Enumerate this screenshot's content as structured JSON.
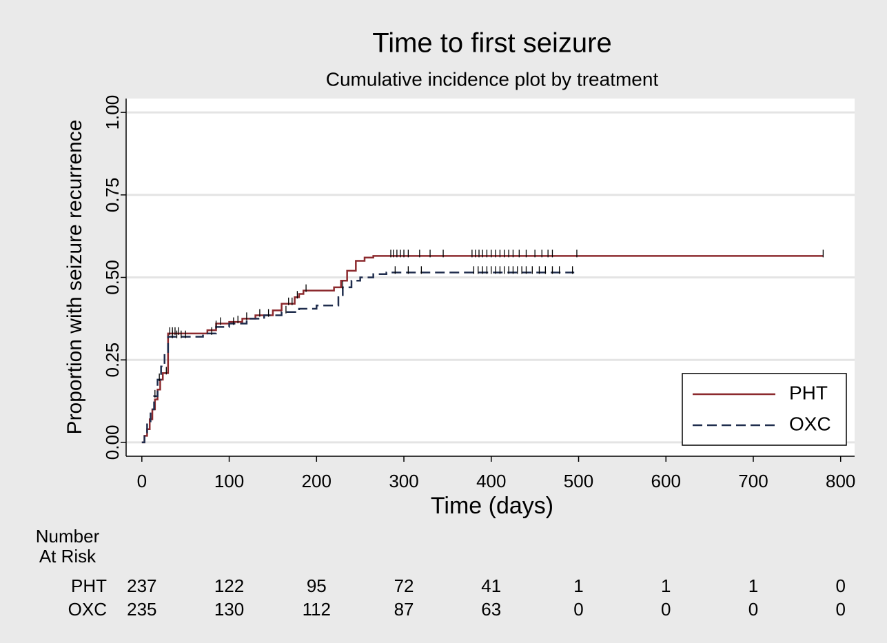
{
  "chart_data": {
    "type": "step",
    "title": "Time to first seizure",
    "subtitle": "Cumulative incidence plot by treatment",
    "x_label": "Time (days)",
    "y_label": "Proportion with seizure recurrence",
    "xlim": [
      -18,
      816
    ],
    "ylim": [
      -0.042,
      1.042
    ],
    "xticks": [
      0,
      100,
      200,
      300,
      400,
      500,
      600,
      700,
      800
    ],
    "yticks": [
      {
        "value": 0,
        "label": "0.00"
      },
      {
        "value": 0.25,
        "label": "0.25"
      },
      {
        "value": 0.5,
        "label": "0.50"
      },
      {
        "value": 0.75,
        "label": "0.75"
      },
      {
        "value": 1,
        "label": "1.00"
      }
    ],
    "grid": true,
    "legend": "lower right",
    "series": [
      {
        "name": "PHT",
        "color": "#8c2a2e",
        "dash": false,
        "x": [
          0,
          3,
          6,
          9,
          12,
          15,
          18,
          21,
          24,
          30,
          60,
          75,
          85,
          100,
          115,
          130,
          150,
          160,
          175,
          180,
          185,
          220,
          228,
          235,
          245,
          255,
          265,
          780
        ],
        "values": [
          0,
          0.02,
          0.04,
          0.07,
          0.1,
          0.13,
          0.16,
          0.19,
          0.21,
          0.33,
          0.33,
          0.34,
          0.36,
          0.365,
          0.375,
          0.385,
          0.4,
          0.42,
          0.44,
          0.45,
          0.46,
          0.47,
          0.49,
          0.52,
          0.55,
          0.56,
          0.565,
          0.565
        ],
        "censored": [
          28,
          32,
          35,
          38,
          42,
          90,
          110,
          135,
          168,
          172,
          178,
          188,
          285,
          288,
          292,
          296,
          300,
          305,
          318,
          330,
          345,
          378,
          382,
          386,
          390,
          395,
          400,
          405,
          410,
          415,
          420,
          425,
          432,
          440,
          450,
          458,
          465,
          470,
          498,
          780
        ]
      },
      {
        "name": "OXC",
        "color": "#1f2d4d",
        "dash": true,
        "x": [
          0,
          3,
          6,
          10,
          14,
          18,
          22,
          26,
          30,
          70,
          85,
          100,
          120,
          140,
          160,
          180,
          200,
          225,
          230,
          240,
          250,
          265,
          280,
          495
        ],
        "values": [
          0,
          0.03,
          0.06,
          0.1,
          0.14,
          0.19,
          0.23,
          0.27,
          0.32,
          0.33,
          0.35,
          0.36,
          0.375,
          0.385,
          0.395,
          0.405,
          0.415,
          0.44,
          0.47,
          0.49,
          0.5,
          0.51,
          0.515,
          0.515
        ],
        "censored": [
          15,
          20,
          35,
          40,
          45,
          50,
          80,
          85,
          105,
          120,
          145,
          165,
          230,
          290,
          305,
          320,
          380,
          385,
          390,
          395,
          400,
          405,
          410,
          415,
          420,
          425,
          430,
          435,
          440,
          447,
          455,
          462,
          470,
          478,
          493
        ]
      }
    ],
    "risk_table": {
      "title": [
        "Number",
        "At Risk"
      ],
      "rows": [
        {
          "name": "PHT",
          "values": [
            237,
            122,
            95,
            72,
            41,
            1,
            1,
            1,
            0
          ]
        },
        {
          "name": "OXC",
          "values": [
            235,
            130,
            112,
            87,
            63,
            0,
            0,
            0,
            0
          ]
        }
      ]
    }
  }
}
